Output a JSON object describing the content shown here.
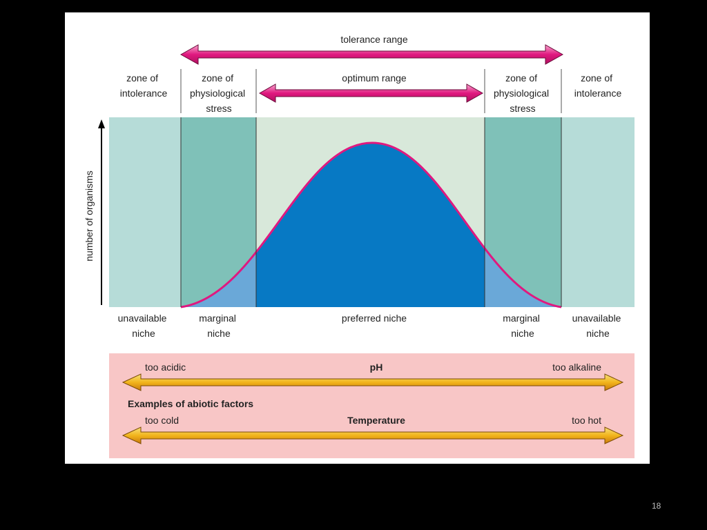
{
  "diagram": {
    "tolerance_range": "tolerance range",
    "optimum_range": "optimum range",
    "zones_top": [
      [
        "zone of",
        "intolerance"
      ],
      [
        "zone of",
        "physiological",
        "stress"
      ],
      [
        "zone of",
        "physiological",
        "stress"
      ],
      [
        "zone of",
        "intolerance"
      ]
    ],
    "y_axis_label": "number of organisms",
    "zones_bottom": {
      "left_unavailable": [
        "unavailable",
        "niche"
      ],
      "left_marginal": [
        "marginal",
        "niche"
      ],
      "preferred": "preferred niche",
      "right_marginal": [
        "marginal",
        "niche"
      ],
      "right_unavailable": [
        "unavailable",
        "niche"
      ]
    },
    "abiotic": {
      "heading": "Examples of abiotic factors",
      "ph": {
        "name": "pH",
        "left": "too acidic",
        "right": "too alkaline"
      },
      "temperature": {
        "name": "Temperature",
        "left": "too cold",
        "right": "too hot"
      }
    },
    "colors": {
      "curve_stroke": "#e0187f",
      "curve_fill_center": "#0779c4",
      "curve_fill_sides": "#6aa8d8",
      "intolerance_zone": "#b6dcd8",
      "stress_zone": "#7fc1b8",
      "optimum_zone": "#d8e8da",
      "abiotic_panel": "#f8c6c6",
      "orange_arrow": "#e8a21c"
    }
  },
  "slide": {
    "number": "18"
  }
}
